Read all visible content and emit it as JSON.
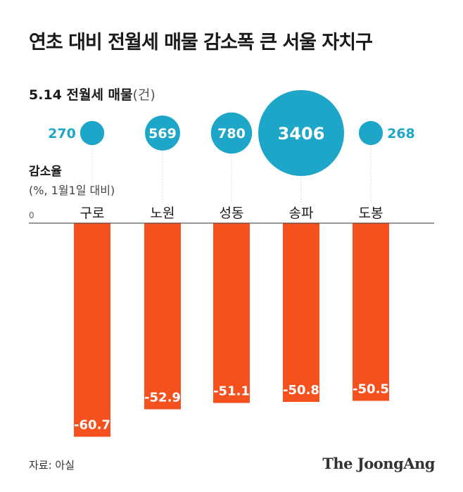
{
  "title": "연초 대비 전월세 매물 감소폭 큰 서울 자치구",
  "subtitle": {
    "main": "5.14 전월세 매물",
    "unit": "(건)"
  },
  "ylabel": {
    "line1": "감소율",
    "line2": "(%, 1월1일 대비)"
  },
  "zero_label": "0",
  "source": "자료: 아실",
  "brand": "The JoongAng",
  "colors": {
    "bar": "#F4511E",
    "bubble": "#1EA6C9",
    "bubble_label": "#1EA6C9",
    "leader": "#c8c8c8",
    "baseline": "#333333"
  },
  "chart_data": [
    {
      "type": "bar",
      "categories": [
        "구로",
        "노원",
        "성동",
        "송파",
        "도봉"
      ],
      "values": [
        -60.7,
        -52.9,
        -51.1,
        -50.8,
        -50.5
      ],
      "ylabel": "감소율 (%, 1월1일 대비)",
      "ylim": [
        -65,
        0
      ]
    },
    {
      "type": "scatter",
      "title": "5.14 전월세 매물(건)",
      "categories": [
        "구로",
        "노원",
        "성동",
        "송파",
        "도봉"
      ],
      "values": [
        270,
        569,
        780,
        3406,
        268
      ],
      "encoding": "bubble area proportional to value"
    }
  ]
}
